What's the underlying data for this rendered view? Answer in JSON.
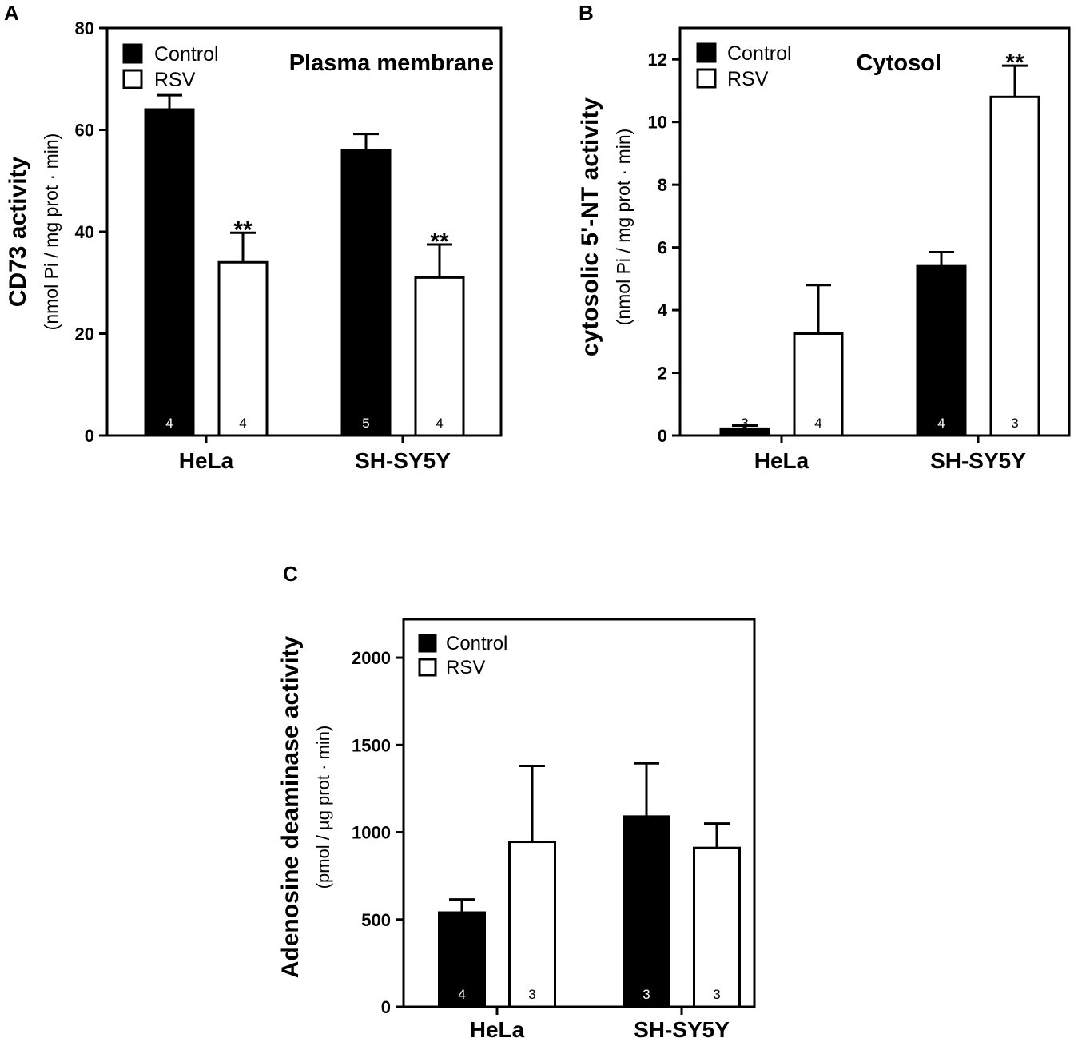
{
  "chart_data": [
    {
      "type": "bar",
      "panel_label": "A",
      "title": "Plasma membrane",
      "ylabel": "CD73 activity",
      "ylabel_sub": "(nmol Pi / mg prot · min)",
      "categories": [
        "HeLa",
        "SH-SY5Y"
      ],
      "ylim": [
        0,
        80
      ],
      "yticks": [
        0,
        20,
        40,
        60,
        80
      ],
      "legend_position": "top-left",
      "grid": false,
      "series": [
        {
          "name": "Control",
          "fill": "#000000",
          "values": [
            64,
            56
          ],
          "errors": [
            2.8,
            3.2
          ],
          "n": [
            "4",
            "5"
          ],
          "sig": [
            "",
            ""
          ]
        },
        {
          "name": "RSV",
          "fill": "#ffffff",
          "values": [
            34,
            31
          ],
          "errors": [
            5.8,
            6.5
          ],
          "n": [
            "4",
            "4"
          ],
          "sig": [
            "**",
            "**"
          ]
        }
      ]
    },
    {
      "type": "bar",
      "panel_label": "B",
      "title": "Cytosol",
      "ylabel": "cytosolic 5'-NT activity",
      "ylabel_sub": "(nmol Pi / mg prot · min)",
      "categories": [
        "HeLa",
        "SH-SY5Y"
      ],
      "ylim": [
        0,
        13
      ],
      "yticks": [
        0,
        2,
        4,
        6,
        8,
        10,
        12
      ],
      "legend_position": "top-left",
      "grid": false,
      "series": [
        {
          "name": "Control",
          "fill": "#000000",
          "values": [
            0.22,
            5.4
          ],
          "errors": [
            0.1,
            0.45
          ],
          "n": [
            "3",
            "4"
          ],
          "sig": [
            "",
            ""
          ]
        },
        {
          "name": "RSV",
          "fill": "#ffffff",
          "values": [
            3.25,
            10.8
          ],
          "errors": [
            1.55,
            1.0
          ],
          "n": [
            "4",
            "3"
          ],
          "sig": [
            "",
            "**"
          ]
        }
      ]
    },
    {
      "type": "bar",
      "panel_label": "C",
      "title": "",
      "ylabel": "Adenosine deaminase activity",
      "ylabel_sub": "(pmol / µg prot · min)",
      "categories": [
        "HeLa",
        "SH-SY5Y"
      ],
      "ylim": [
        0,
        2220
      ],
      "yticks": [
        0,
        500,
        1000,
        1500,
        2000
      ],
      "legend_position": "top-left",
      "grid": false,
      "series": [
        {
          "name": "Control",
          "fill": "#000000",
          "values": [
            540,
            1090
          ],
          "errors": [
            75,
            305
          ],
          "n": [
            "4",
            "3"
          ],
          "sig": [
            "",
            ""
          ]
        },
        {
          "name": "RSV",
          "fill": "#ffffff",
          "values": [
            945,
            910
          ],
          "errors": [
            435,
            140
          ],
          "n": [
            "3",
            "3"
          ],
          "sig": [
            "",
            ""
          ]
        }
      ]
    }
  ]
}
